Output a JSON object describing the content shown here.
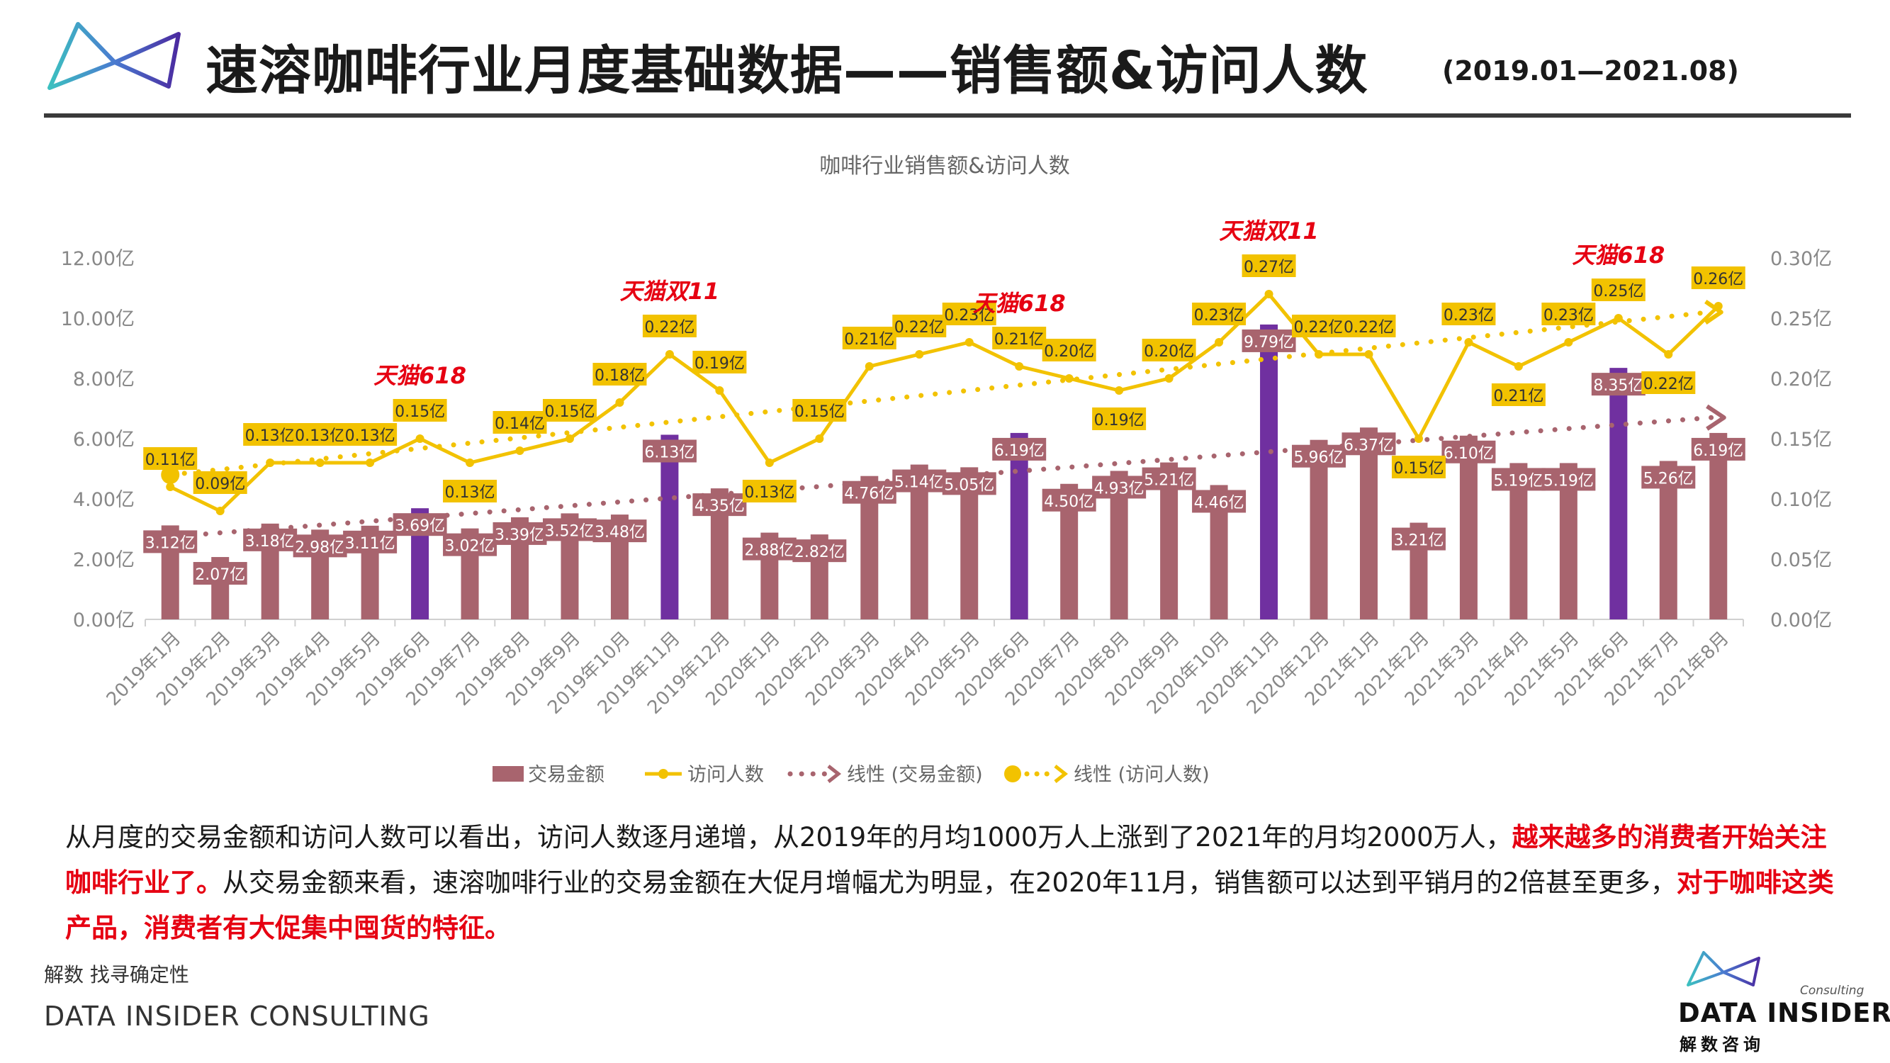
{
  "header": {
    "title": "速溶咖啡行业月度基础数据——销售额&访问人数",
    "date_range": "(2019.01—2021.08)"
  },
  "colors": {
    "bar": "#a8646e",
    "bar_promo": "#7030a0",
    "line": "#f2c200",
    "trend_bar": "#a8646e",
    "promo_text": "#e60012",
    "label_box": "#f2c200",
    "bar_label_box": "#a8646e"
  },
  "chart_data": {
    "type": "bar",
    "title": "咖啡行业销售额&访问人数",
    "categories": [
      "2019年1月",
      "2019年2月",
      "2019年3月",
      "2019年4月",
      "2019年5月",
      "2019年6月",
      "2019年7月",
      "2019年8月",
      "2019年9月",
      "2019年10月",
      "2019年11月",
      "2019年12月",
      "2020年1月",
      "2020年2月",
      "2020年3月",
      "2020年4月",
      "2020年5月",
      "2020年6月",
      "2020年7月",
      "2020年8月",
      "2020年9月",
      "2020年10月",
      "2020年11月",
      "2020年12月",
      "2021年1月",
      "2021年2月",
      "2021年3月",
      "2021年4月",
      "2021年5月",
      "2021年6月",
      "2021年7月",
      "2021年8月"
    ],
    "series": [
      {
        "name": "交易金额",
        "type": "bar",
        "axis": "left",
        "values": [
          3.12,
          2.07,
          3.18,
          2.98,
          3.11,
          3.69,
          3.02,
          3.39,
          3.52,
          3.48,
          6.13,
          4.35,
          2.88,
          2.82,
          4.76,
          5.14,
          5.05,
          6.19,
          4.5,
          4.93,
          5.21,
          4.46,
          9.79,
          5.96,
          6.37,
          3.21,
          6.1,
          5.19,
          5.19,
          8.35,
          5.26,
          6.19
        ],
        "labels": [
          "3.12亿",
          "2.07亿",
          "3.18亿",
          "2.98亿",
          "3.11亿",
          "3.69亿",
          "3.02亿",
          "3.39亿",
          "3.52亿",
          "3.48亿",
          "6.13亿",
          "4.35亿",
          "2.88亿",
          "2.82亿",
          "4.76亿",
          "5.14亿",
          "5.05亿",
          "6.19亿",
          "4.50亿",
          "4.93亿",
          "5.21亿",
          "4.46亿",
          "9.79亿",
          "5.96亿",
          "6.37亿",
          "3.21亿",
          "6.10亿",
          "5.19亿",
          "5.19亿",
          "8.35亿",
          "5.26亿",
          "6.19亿"
        ],
        "highlight": [
          false,
          false,
          false,
          false,
          false,
          true,
          false,
          false,
          false,
          false,
          true,
          false,
          false,
          false,
          false,
          false,
          false,
          true,
          false,
          false,
          false,
          false,
          true,
          false,
          false,
          false,
          false,
          false,
          false,
          true,
          false,
          false
        ]
      },
      {
        "name": "访问人数",
        "type": "line",
        "axis": "right",
        "values": [
          0.11,
          0.09,
          0.13,
          0.13,
          0.13,
          0.15,
          0.13,
          0.14,
          0.15,
          0.18,
          0.22,
          0.19,
          0.13,
          0.15,
          0.21,
          0.22,
          0.23,
          0.21,
          0.2,
          0.19,
          0.2,
          0.23,
          0.27,
          0.22,
          0.22,
          0.15,
          0.23,
          0.21,
          0.23,
          0.25,
          0.22,
          0.26
        ],
        "labels": [
          "0.11亿",
          "0.09亿",
          "0.13亿",
          "0.13亿",
          "0.13亿",
          "0.15亿",
          "0.13亿",
          "0.14亿",
          "0.15亿",
          "0.18亿",
          "0.22亿",
          "0.19亿",
          "0.13亿",
          "0.15亿",
          "0.21亿",
          "0.22亿",
          "0.23亿",
          "0.21亿",
          "0.20亿",
          "0.19亿",
          "0.20亿",
          "0.23亿",
          "0.27亿",
          "0.22亿",
          "0.22亿",
          "0.15亿",
          "0.23亿",
          "0.21亿",
          "0.23亿",
          "0.25亿",
          "0.22亿",
          "0.26亿"
        ]
      }
    ],
    "trendlines": [
      {
        "name": "线性 (交易金额)",
        "axis": "left",
        "from": 2.8,
        "to": 6.7
      },
      {
        "name": "线性 (访问人数)",
        "axis": "right",
        "from": 0.12,
        "to": 0.255
      }
    ],
    "y_left": {
      "min": 0,
      "max": 12,
      "ticks": [
        "0.00亿",
        "2.00亿",
        "4.00亿",
        "6.00亿",
        "8.00亿",
        "10.00亿",
        "12.00亿"
      ]
    },
    "y_right": {
      "min": 0,
      "max": 0.3,
      "ticks": [
        "0.00亿",
        "0.05亿",
        "0.10亿",
        "0.15亿",
        "0.20亿",
        "0.25亿",
        "0.30亿"
      ]
    },
    "legend": [
      "交易金额",
      "访问人数",
      "线性 (交易金额)",
      "线性 (访问人数)"
    ],
    "legend_position": "bottom",
    "annotations": [
      {
        "text": "天猫618",
        "category": "2019年6月"
      },
      {
        "text": "天猫双11",
        "category": "2019年11月"
      },
      {
        "text": "天猫618",
        "category": "2020年6月"
      },
      {
        "text": "天猫双11",
        "category": "2020年11月"
      },
      {
        "text": "天猫618",
        "category": "2021年6月"
      }
    ]
  },
  "paragraph": {
    "part1": "从月度的交易金额和访问人数可以看出，访问人数逐月递增，从2019年的月均1000万人上涨到了2021年的月均2000万人，",
    "highlight1": "越来越多的消费者开始关注咖啡行业了。",
    "part2": "从交易金额来看，速溶咖啡行业的交易金额在大促月增幅尤为明显，在2020年11月，销售额可以达到平销月的2倍甚至更多，",
    "highlight2": "对于咖啡这类产品，消费者有大促集中囤货的特征。"
  },
  "footer": {
    "slogan": "解数 找寻确定性",
    "company": "DATA INSIDER CONSULTING"
  },
  "brand": {
    "consulting": "Consulting",
    "name": "DATA INSIDER",
    "cn": "解数咨询"
  }
}
